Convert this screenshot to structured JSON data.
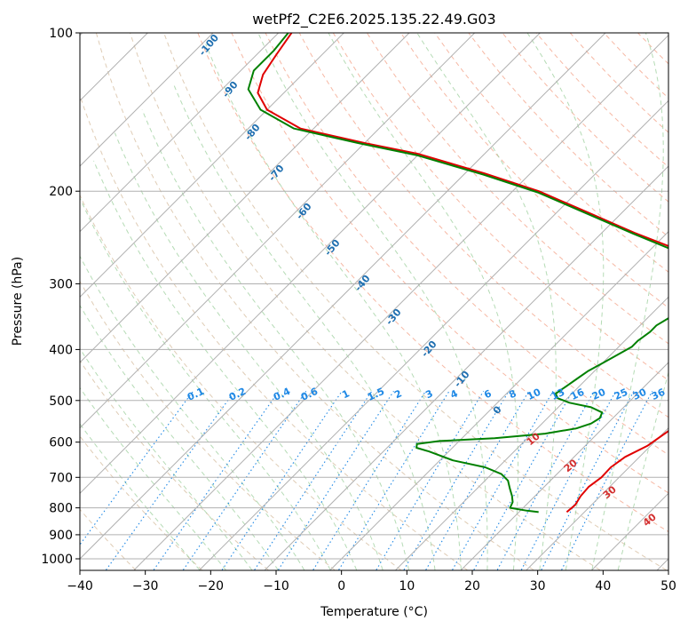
{
  "chart_data": {
    "type": "line",
    "subtype": "skew-t log-p",
    "title": "wetPf2_C2E6.2025.135.22.49.G03",
    "xlabel": "Temperature (°C)",
    "ylabel": "Pressure (hPa)",
    "xlim": [
      -40,
      50
    ],
    "ylim_hpa": [
      1050,
      100
    ],
    "x_ticks": [
      "−40",
      "−30",
      "−20",
      "−10",
      "0",
      "10",
      "20",
      "30",
      "40",
      "50"
    ],
    "y_ticks": [
      "100",
      "200",
      "300",
      "400",
      "500",
      "600",
      "700",
      "800",
      "900",
      "1000"
    ],
    "y_tick_values": [
      100,
      200,
      300,
      400,
      500,
      600,
      700,
      800,
      900,
      1000
    ],
    "grid": true,
    "series": [
      {
        "color": "#e00000",
        "points_T_P": [
          [
            27.3,
            815
          ],
          [
            27.5,
            790
          ],
          [
            27.0,
            760
          ],
          [
            26.8,
            730
          ],
          [
            27.3,
            700
          ],
          [
            27.2,
            670
          ],
          [
            27.8,
            640
          ],
          [
            29.5,
            610
          ],
          [
            30.5,
            570
          ],
          [
            31.0,
            530
          ],
          [
            31.2,
            500
          ],
          [
            30.8,
            470
          ],
          [
            30.5,
            440
          ],
          [
            29.8,
            400
          ],
          [
            29.0,
            370
          ],
          [
            28.5,
            340
          ],
          [
            26.0,
            320
          ],
          [
            22.0,
            300
          ],
          [
            15.0,
            280
          ],
          [
            5.0,
            260
          ],
          [
            -5.0,
            240
          ],
          [
            -15.0,
            220
          ],
          [
            -26.0,
            200
          ],
          [
            -37.0,
            185
          ],
          [
            -50.0,
            170
          ],
          [
            -60.0,
            162
          ],
          [
            -72.0,
            152
          ],
          [
            -80.0,
            140
          ],
          [
            -84.0,
            130
          ],
          [
            -86.0,
            120
          ],
          [
            -87.0,
            110
          ],
          [
            -88.0,
            100
          ]
        ]
      },
      {
        "color": "#008000",
        "points_T_P": [
          [
            23.0,
            815
          ],
          [
            21.0,
            810
          ],
          [
            18.0,
            800
          ],
          [
            17.5,
            780
          ],
          [
            16.5,
            760
          ],
          [
            15.0,
            735
          ],
          [
            13.5,
            710
          ],
          [
            11.5,
            690
          ],
          [
            8.0,
            670
          ],
          [
            2.0,
            650
          ],
          [
            -3.0,
            625
          ],
          [
            -5.5,
            615
          ],
          [
            -6.0,
            605
          ],
          [
            -3.0,
            597
          ],
          [
            5.0,
            590
          ],
          [
            12.0,
            578
          ],
          [
            16.0,
            565
          ],
          [
            17.5,
            553
          ],
          [
            18.0,
            540
          ],
          [
            17.5,
            527
          ],
          [
            15.0,
            515
          ],
          [
            11.0,
            505
          ],
          [
            8.5,
            495
          ],
          [
            7.5,
            485
          ],
          [
            8.0,
            470
          ],
          [
            8.5,
            455
          ],
          [
            9.0,
            440
          ],
          [
            10.0,
            425
          ],
          [
            11.0,
            410
          ],
          [
            12.0,
            395
          ],
          [
            12.0,
            385
          ],
          [
            12.5,
            370
          ],
          [
            12.5,
            360
          ],
          [
            13.5,
            345
          ],
          [
            15.5,
            330
          ],
          [
            19.5,
            312
          ],
          [
            20.0,
            302
          ],
          [
            15.0,
            285
          ],
          [
            5.0,
            262
          ],
          [
            -5.0,
            241
          ],
          [
            -15.0,
            221
          ],
          [
            -26.0,
            201
          ],
          [
            -37.0,
            186
          ],
          [
            -50.0,
            171
          ],
          [
            -61.0,
            162
          ],
          [
            -73.0,
            152
          ],
          [
            -81.0,
            140
          ],
          [
            -86.0,
            128
          ],
          [
            -88.0,
            118
          ],
          [
            -88.0,
            108
          ],
          [
            -88.5,
            100
          ]
        ]
      }
    ],
    "mixing_ratio_labels": [
      "0.1",
      "0.2",
      "0.4",
      "0.6",
      "1",
      "1.5",
      "2",
      "3",
      "4",
      "6",
      "8",
      "10",
      "13",
      "16",
      "20",
      "25",
      "30",
      "36"
    ],
    "dry_adiabat_labels": [
      "-100",
      "-90",
      "-80",
      "-70",
      "-60",
      "-50",
      "-40",
      "-30",
      "-20",
      "-10",
      "0"
    ],
    "moist_adiabat_labels": [
      "10",
      "20",
      "30",
      "40"
    ]
  }
}
